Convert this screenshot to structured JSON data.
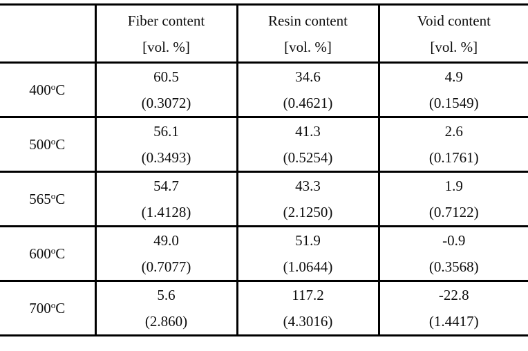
{
  "table": {
    "unit_note": "[vol. %]",
    "deg_sup": "o",
    "deg_unit": "C",
    "columns": [
      {
        "line1": "Fiber content",
        "line2": "[vol. %]"
      },
      {
        "line1": "Resin content",
        "line2": "[vol. %]"
      },
      {
        "line1": "Void content",
        "line2": "[vol. %]"
      }
    ],
    "rows": [
      {
        "temp": "400",
        "cells": [
          {
            "value": "60.5",
            "std": "(0.3072)"
          },
          {
            "value": "34.6",
            "std": "(0.4621)"
          },
          {
            "value": "4.9",
            "std": "(0.1549)"
          }
        ]
      },
      {
        "temp": "500",
        "cells": [
          {
            "value": "56.1",
            "std": "(0.3493)"
          },
          {
            "value": "41.3",
            "std": "(0.5254)"
          },
          {
            "value": "2.6",
            "std": "(0.1761)"
          }
        ]
      },
      {
        "temp": "565",
        "cells": [
          {
            "value": "54.7",
            "std": "(1.4128)"
          },
          {
            "value": "43.3",
            "std": "(2.1250)"
          },
          {
            "value": "1.9",
            "std": "(0.7122)"
          }
        ]
      },
      {
        "temp": "600",
        "cells": [
          {
            "value": "49.0",
            "std": "(0.7077)"
          },
          {
            "value": "51.9",
            "std": "(1.0644)"
          },
          {
            "value": "-0.9",
            "std": "(0.3568)"
          }
        ]
      },
      {
        "temp": "700",
        "cells": [
          {
            "value": "5.6",
            "std": "(2.860)"
          },
          {
            "value": "117.2",
            "std": "(4.3016)"
          },
          {
            "value": "-22.8",
            "std": "(1.4417)"
          }
        ]
      }
    ]
  }
}
